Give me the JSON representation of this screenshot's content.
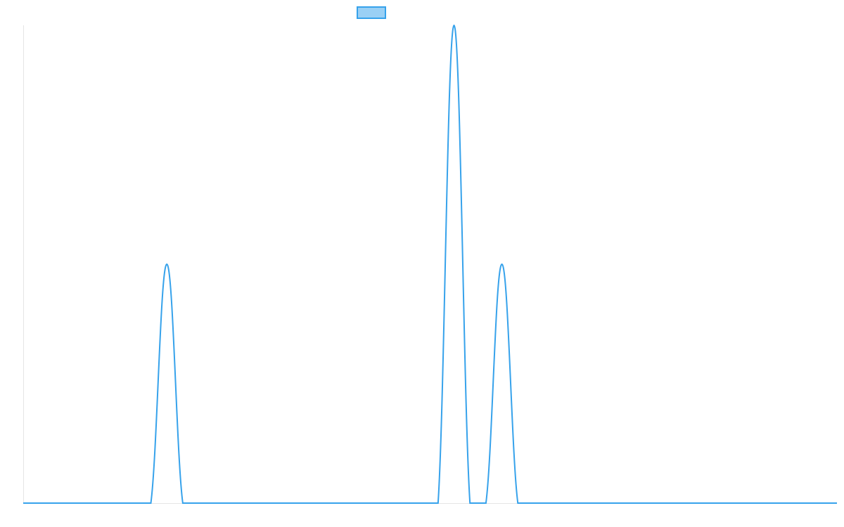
{
  "chart_data": {
    "type": "line",
    "title": "",
    "xlabel": "",
    "ylabel": "",
    "grid": false,
    "legend": {
      "placement": "top-center",
      "entries": [
        {
          "label": ""
        }
      ]
    },
    "xlim": [
      0,
      51
    ],
    "ylim": [
      0,
      2
    ],
    "series": [
      {
        "color": "#36a2eb",
        "fill_color": "#9ad0f5",
        "x": [
          0,
          1,
          2,
          3,
          4,
          5,
          6,
          7,
          8,
          9,
          10,
          11,
          12,
          13,
          14,
          15,
          16,
          17,
          18,
          19,
          20,
          21,
          22,
          23,
          24,
          25,
          26,
          27,
          28,
          29,
          30,
          31,
          32,
          33,
          34,
          35,
          36,
          37,
          38,
          39,
          40,
          41,
          42,
          43,
          44,
          45,
          46,
          47,
          48,
          49,
          50,
          51
        ],
        "y": [
          0,
          0,
          0,
          0,
          0,
          0,
          0,
          0,
          0,
          1,
          0,
          0,
          0,
          0,
          0,
          0,
          0,
          0,
          0,
          0,
          0,
          0,
          0,
          0,
          0,
          0,
          0,
          2,
          0,
          0,
          1,
          0,
          0,
          0,
          0,
          0,
          0,
          0,
          0,
          0,
          0,
          0,
          0,
          0,
          0,
          0,
          0,
          0,
          0,
          0,
          0,
          0
        ]
      }
    ]
  }
}
